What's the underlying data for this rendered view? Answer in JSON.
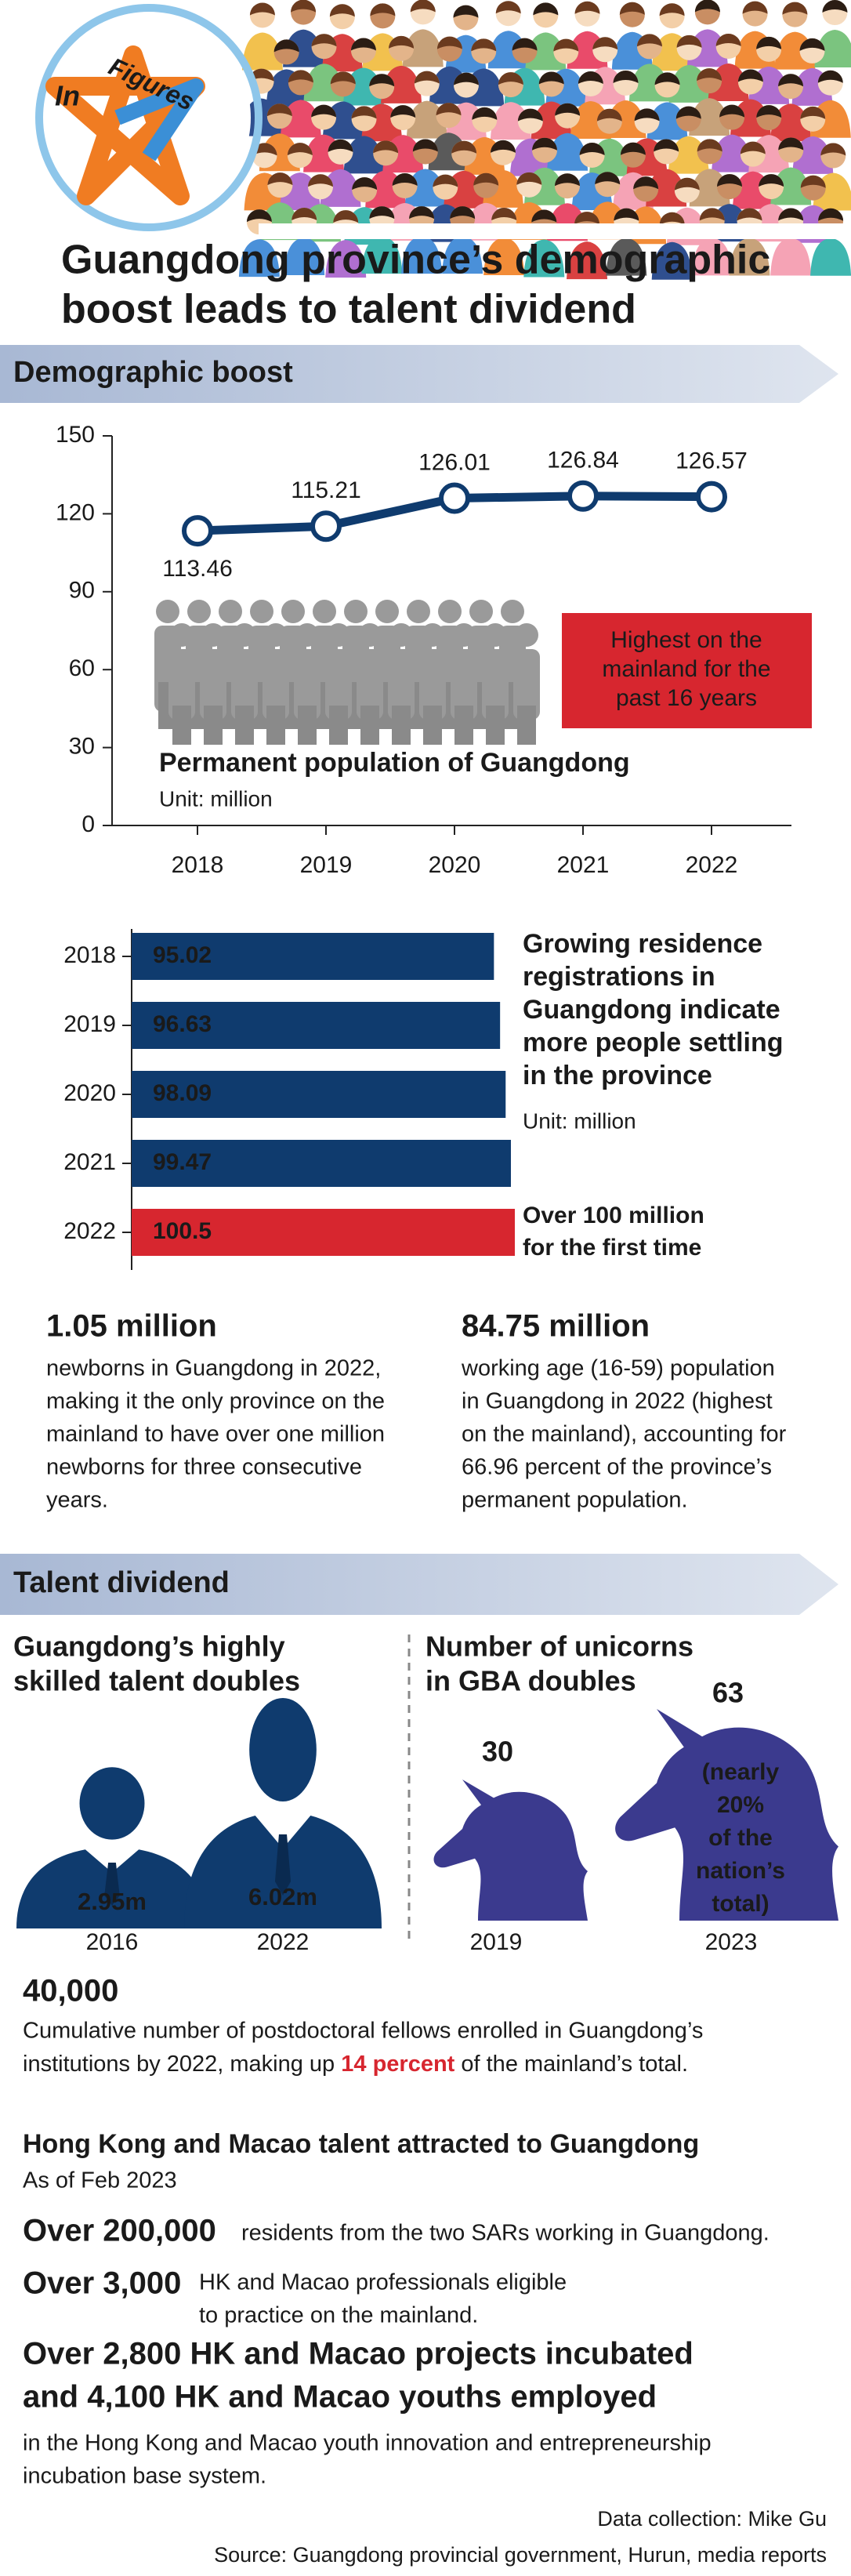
{
  "header": {
    "logo": [
      "In",
      "Figures"
    ],
    "title": [
      "Guangdong province’s demographic",
      "boost leads to talent dividend"
    ]
  },
  "sections": [
    "Demographic boost",
    "Talent dividend"
  ],
  "chart_data": [
    {
      "type": "line",
      "title": "Permanent population of Guangdong",
      "subtitle": "Unit: million",
      "categories": [
        "2018",
        "2019",
        "2020",
        "2021",
        "2022"
      ],
      "values": [
        113.46,
        115.21,
        126.01,
        126.84,
        126.57
      ],
      "color": "#0f3b6e",
      "ylim": [
        0,
        150
      ],
      "yticks": [
        0,
        30,
        60,
        90,
        120,
        150
      ],
      "annotation": [
        "Highest on the",
        "mainland for the",
        "past 16 years"
      ],
      "annotation_color": "#d7262f"
    },
    {
      "type": "bar",
      "title": [
        "Growing residence",
        "registrations in",
        "Guangdong indicate",
        "more people settling",
        "in the province"
      ],
      "subtitle": "Unit: million",
      "categories": [
        "2018",
        "2019",
        "2020",
        "2021",
        "2022"
      ],
      "values": [
        95.02,
        96.63,
        98.09,
        99.47,
        100.5
      ],
      "colors": [
        "#0f3b6e",
        "#0f3b6e",
        "#0f3b6e",
        "#0f3b6e",
        "#d7262f"
      ],
      "annotation": [
        "Over 100 million",
        "for the first time"
      ],
      "annotation_color": "#d7262f"
    }
  ],
  "stats": [
    {
      "value": "1.05 million",
      "text": [
        "newborns in Guangdong in 2022,",
        "making it the only province on the",
        "mainland to have over one million",
        "newborns for three consecutive",
        "years."
      ]
    },
    {
      "value": "84.75 million",
      "text": [
        "working age (16-59) population",
        "in Guangdong in 2022 (highest",
        "on the mainland), accounting for",
        "66.96 percent of the province’s",
        "permanent population."
      ]
    }
  ],
  "talent": {
    "title": [
      "Guangdong’s highly",
      "skilled talent doubles"
    ],
    "items": [
      {
        "value": "2.95m",
        "year": "2016"
      },
      {
        "value": "6.02m",
        "year": "2022"
      }
    ]
  },
  "unicorns": {
    "title": [
      "Number of unicorns",
      "in GBA doubles"
    ],
    "items": [
      {
        "value": "30",
        "year": "2019"
      },
      {
        "value": "63",
        "year": "2023",
        "note": [
          "(nearly",
          "20%",
          "of the",
          "nation’s",
          "total)"
        ]
      }
    ]
  },
  "postdoc": {
    "value": "40,000",
    "line1": "Cumulative number of postdoctoral fellows enrolled in Guangdong’s",
    "line2_start": "institutions by 2022, making up ",
    "highlight": "14 percent",
    "line2_end": " of the mainland’s total."
  },
  "hk_macao": {
    "title": "Hong Kong and Macao talent attracted to Guangdong",
    "date": "As of Feb 2023",
    "items": [
      {
        "value": [
          "Over 200,000"
        ],
        "text": [
          "residents from the two SARs working in Guangdong."
        ]
      },
      {
        "value": [
          "Over 3,000"
        ],
        "text": [
          "HK and Macao professionals eligible",
          "to practice on the mainland."
        ]
      },
      {
        "value": [
          "Over 2,800 HK and Macao projects incubated",
          "and 4,100 HK and Macao youths employed"
        ],
        "text": [
          "in the Hong Kong and Macao youth innovation and entrepreneurship",
          "incubation base system."
        ]
      }
    ]
  },
  "footer": {
    "credit": "Data collection: Mike Gu",
    "source": "Source: Guangdong provincial government, Hurun, media reports"
  }
}
